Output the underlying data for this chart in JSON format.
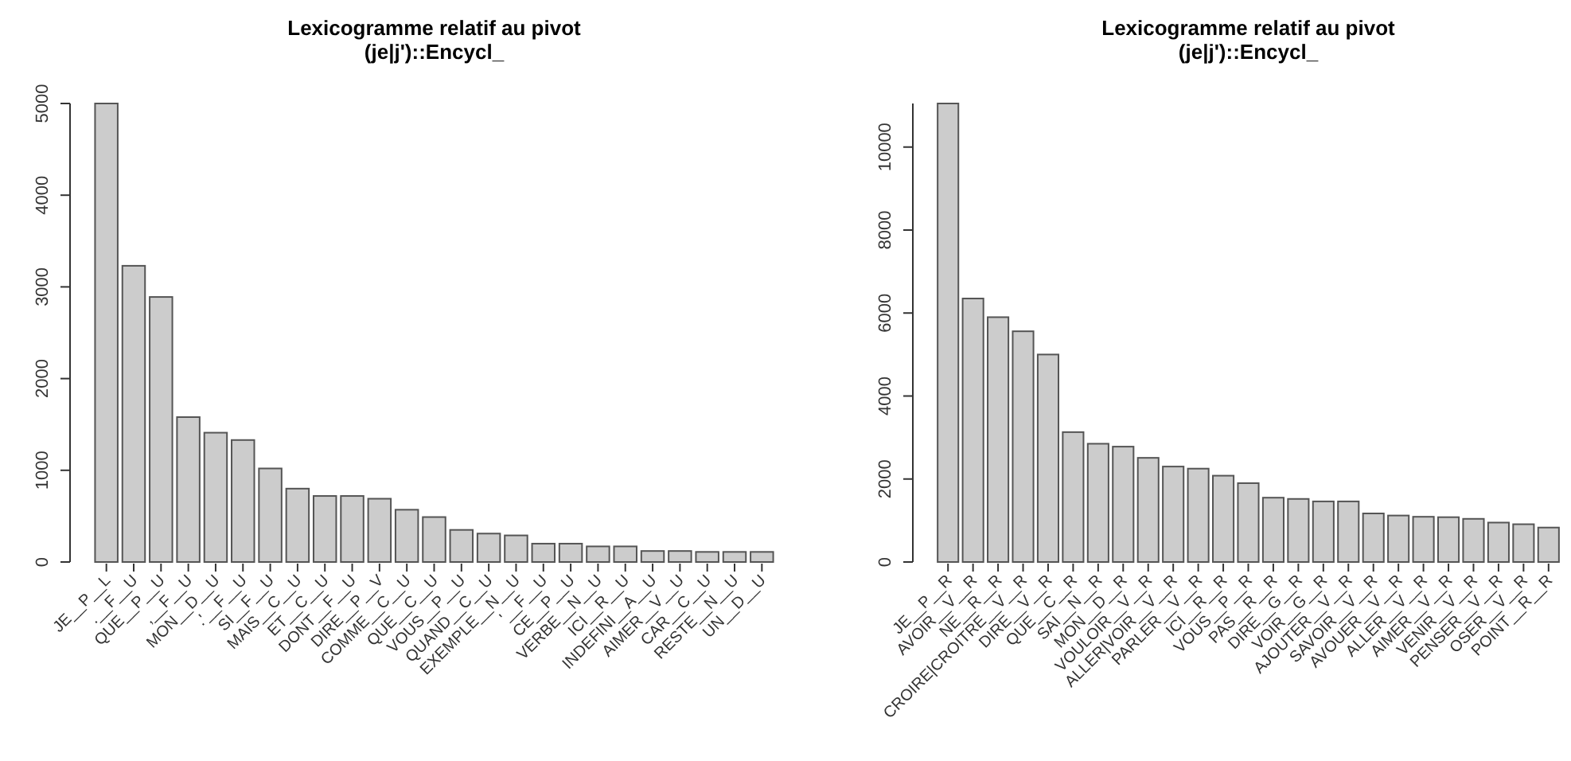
{
  "chart_data": [
    {
      "type": "bar",
      "title": "Lexicogramme relatif au pivot\n(je|j')::Encycl_",
      "categories": [
        "JE__P__L",
        ".__F__U",
        "QUE__P__U",
        ",__F__U",
        "MON__D__U",
        ".'__F__U",
        "SI__F__U",
        "MAIS__C__U",
        "ET__C__U",
        "DONT__F__U",
        "DIRE__P__V",
        "COMME__C__U",
        "QUE__C__U",
        "VOUS__P__U",
        "QUAND__C__U",
        "EXEMPLE__N__U",
        "'__F__U",
        "CE__P__U",
        "VERBE__N__U",
        "ICI__R__U",
        "INDEFINI__A__U",
        "AIMER__V__U",
        "CAR__C__U",
        "RESTE__N__U",
        "UN__D__U"
      ],
      "values": [
        5000,
        3230,
        2890,
        1580,
        1410,
        1330,
        1020,
        800,
        720,
        720,
        690,
        570,
        490,
        350,
        310,
        290,
        200,
        200,
        170,
        170,
        120,
        120,
        110,
        110,
        110
      ],
      "color": "#cccccc",
      "ylim": [
        0,
        5000
      ],
      "yticks": [
        0,
        1000,
        2000,
        3000,
        4000,
        5000
      ]
    },
    {
      "type": "bar",
      "title": "Lexicogramme relatif au pivot\n(je|j')::Encycl_",
      "categories": [
        "JE__P__R",
        "AVOIR__V__R",
        "NE__R__R",
        "CROIRE|CROITRE__V__R",
        "DIRE__V__R",
        "QUE__C__R",
        "SAI__N__R",
        "MON__D__R",
        "VOULOIR__V__R",
        "ALLER|VOIR__V__R",
        "PARLER__V__R",
        "ICI__R__R",
        "VOUS__P__R",
        "PAS__R__R",
        "DIRE__G__R",
        "VOIR__G__R",
        "AJOUTER__V__R",
        "SAVOIR__V__R",
        "AVOUER__V__R",
        "ALLER__V__R",
        "AIMER__V__R",
        "VENIR__V__R",
        "PENSER__V__R",
        "OSER__V__R",
        "POINT__R__R"
      ],
      "values": [
        11050,
        6350,
        5900,
        5560,
        5000,
        3130,
        2850,
        2780,
        2510,
        2300,
        2250,
        2080,
        1900,
        1550,
        1520,
        1460,
        1460,
        1170,
        1120,
        1090,
        1080,
        1040,
        950,
        910,
        830
      ],
      "color": "#cccccc",
      "ylim": [
        0,
        11050
      ],
      "yticks": [
        0,
        2000,
        4000,
        6000,
        8000,
        10000
      ]
    }
  ]
}
